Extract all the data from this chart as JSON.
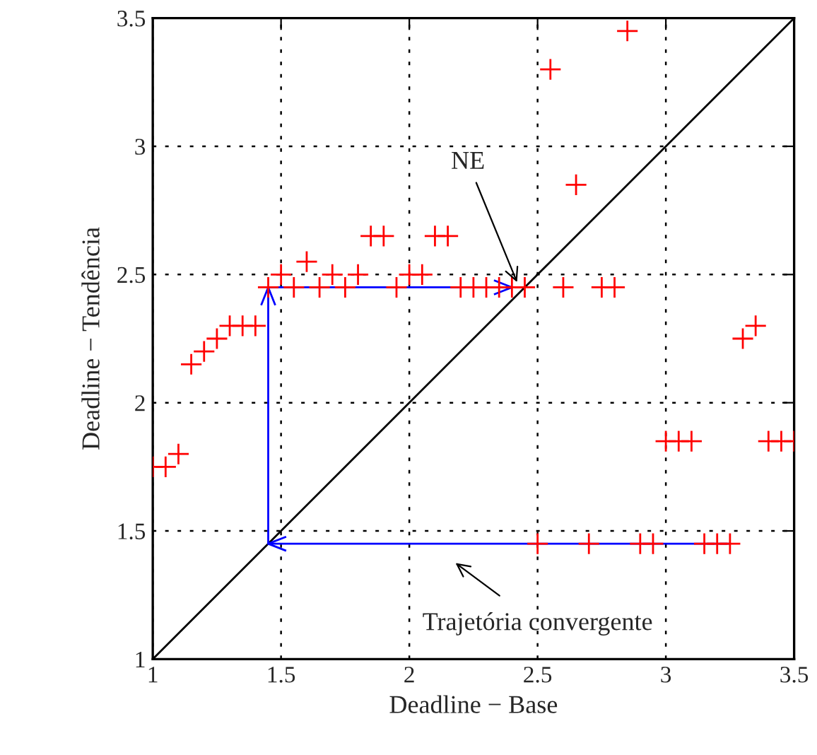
{
  "chart_data": {
    "type": "scatter",
    "xlabel": "Deadline − Base",
    "ylabel": "Deadline − Tendência",
    "xlim": [
      1,
      3.5
    ],
    "ylim": [
      1,
      3.5
    ],
    "xticks": [
      1,
      1.5,
      2,
      2.5,
      3,
      3.5
    ],
    "yticks": [
      1,
      1.5,
      2,
      2.5,
      3,
      3.5
    ],
    "grid": true,
    "marker": "cross",
    "series": [
      {
        "color": "#ff0000",
        "x": [
          1.0,
          1.05,
          1.1,
          1.15,
          1.2,
          1.25,
          1.3,
          1.35,
          1.4,
          1.45,
          1.5,
          1.55,
          1.6,
          1.65,
          1.7,
          1.75,
          1.8,
          1.85,
          1.9,
          1.95,
          2.0,
          2.05,
          2.1,
          2.15,
          2.2,
          2.25,
          2.3,
          2.35,
          2.4,
          2.45,
          2.55,
          2.6,
          2.65,
          2.75,
          2.8,
          2.85,
          3.3,
          3.35,
          3.0,
          3.05,
          3.1,
          3.4,
          3.45,
          3.5,
          2.5,
          2.7,
          2.9,
          2.95,
          3.15,
          3.2,
          3.25
        ],
        "values": [
          1.75,
          1.75,
          1.8,
          2.15,
          2.2,
          2.25,
          2.3,
          2.3,
          2.3,
          2.45,
          2.5,
          2.45,
          2.55,
          2.45,
          2.5,
          2.45,
          2.5,
          2.65,
          2.65,
          2.45,
          2.5,
          2.5,
          2.65,
          2.65,
          2.45,
          2.45,
          2.45,
          2.45,
          2.45,
          2.45,
          3.3,
          2.45,
          2.85,
          2.45,
          2.45,
          3.45,
          2.25,
          2.3,
          1.85,
          1.85,
          1.85,
          1.85,
          1.85,
          1.85,
          1.45,
          1.45,
          1.45,
          1.45,
          1.45,
          1.45,
          1.45
        ]
      },
      {
        "type": "line",
        "marker": "none",
        "color": "#000000",
        "x": [
          1,
          3.5
        ],
        "values": [
          1,
          3.5
        ]
      },
      {
        "type": "line",
        "marker": "none",
        "color": "#0000ff",
        "x": [
          3.25,
          1.45,
          1.45,
          2.4
        ],
        "values": [
          1.45,
          1.45,
          2.45,
          2.45
        ]
      }
    ],
    "annotations": [
      {
        "text": "NE",
        "x": 2.42,
        "y": 2.47
      },
      "Trajetória convergente"
    ]
  }
}
